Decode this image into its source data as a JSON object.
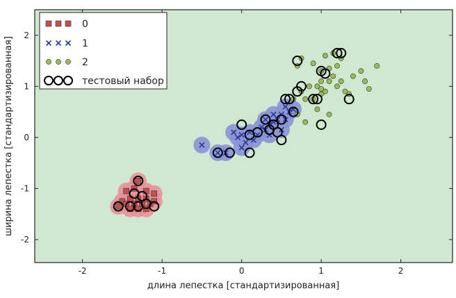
{
  "chart_data": {
    "type": "scatter",
    "xlabel": "длина лепестка [стандартизированная]",
    "ylabel": "ширина лепестка [стандартизированная]",
    "xlim": [
      -2.6,
      2.65
    ],
    "ylim": [
      -2.45,
      2.5
    ],
    "xticks": [
      "-2",
      "-1",
      "0",
      "1",
      "2"
    ],
    "xtick_values": [
      -2,
      -1,
      0,
      1,
      2
    ],
    "yticks": [
      "-2",
      "-1",
      "0",
      "1",
      "2"
    ],
    "ytick_values": [
      -2,
      -1,
      0,
      1,
      2
    ],
    "grid": false,
    "legend_position": "top-left",
    "background_region_color": "#cfe8cf",
    "region_colors": {
      "0": "#e8929a",
      "1": "#8a93d6",
      "2": "#cfe8cf"
    },
    "series": [
      {
        "name": "0",
        "marker": "square",
        "color": "#c0504d",
        "points": [
          [
            -1.45,
            -1.05
          ],
          [
            -1.35,
            -1.0
          ],
          [
            -1.2,
            -1.05
          ],
          [
            -1.1,
            -1.1
          ],
          [
            -1.3,
            -1.2
          ],
          [
            -1.2,
            -1.2
          ],
          [
            -1.4,
            -1.2
          ],
          [
            -1.5,
            -1.25
          ],
          [
            -1.35,
            -1.3
          ],
          [
            -1.25,
            -1.3
          ],
          [
            -1.15,
            -1.3
          ],
          [
            -1.45,
            -1.3
          ],
          [
            -1.3,
            -1.4
          ],
          [
            -1.2,
            -1.4
          ],
          [
            -1.4,
            -1.4
          ],
          [
            -1.55,
            -1.35
          ],
          [
            -1.3,
            -0.85
          ],
          [
            -1.1,
            -1.25
          ]
        ]
      },
      {
        "name": "1",
        "marker": "x",
        "color": "#2b3a8f",
        "points": [
          [
            -0.5,
            -0.15
          ],
          [
            -0.3,
            -0.3
          ],
          [
            -0.2,
            -0.3
          ],
          [
            -0.1,
            0.1
          ],
          [
            0.0,
            0.05
          ],
          [
            0.05,
            -0.1
          ],
          [
            0.1,
            0.1
          ],
          [
            0.2,
            0.05
          ],
          [
            0.25,
            0.2
          ],
          [
            0.3,
            0.15
          ],
          [
            0.35,
            0.25
          ],
          [
            0.4,
            0.3
          ],
          [
            0.45,
            0.35
          ],
          [
            0.4,
            0.45
          ],
          [
            0.5,
            0.45
          ],
          [
            0.55,
            0.35
          ],
          [
            0.6,
            0.5
          ],
          [
            0.5,
            0.15
          ],
          [
            0.15,
            -0.05
          ],
          [
            0.3,
            0.35
          ],
          [
            0.55,
            0.6
          ],
          [
            0.65,
            0.55
          ],
          [
            0.0,
            -0.2
          ],
          [
            -0.05,
            0.0
          ],
          [
            0.35,
            0.05
          ]
        ]
      },
      {
        "name": "2",
        "marker": "circle",
        "color": "#9bbb59",
        "points": [
          [
            0.65,
            0.75
          ],
          [
            0.75,
            0.9
          ],
          [
            0.8,
            0.75
          ],
          [
            0.85,
            1.0
          ],
          [
            0.9,
            0.75
          ],
          [
            0.95,
            1.0
          ],
          [
            1.0,
            0.85
          ],
          [
            1.05,
            0.9
          ],
          [
            1.1,
            1.1
          ],
          [
            1.15,
            1.2
          ],
          [
            1.2,
            1.0
          ],
          [
            1.25,
            1.1
          ],
          [
            1.3,
            0.9
          ],
          [
            1.35,
            0.85
          ],
          [
            1.4,
            1.2
          ],
          [
            1.5,
            1.3
          ],
          [
            1.55,
            1.1
          ],
          [
            1.6,
            0.95
          ],
          [
            1.7,
            1.4
          ],
          [
            0.7,
            1.4
          ],
          [
            0.75,
            1.55
          ],
          [
            0.9,
            1.45
          ],
          [
            1.0,
            1.3
          ],
          [
            1.05,
            1.6
          ],
          [
            1.15,
            1.65
          ],
          [
            1.2,
            1.4
          ],
          [
            1.25,
            1.55
          ],
          [
            0.7,
            0.45
          ],
          [
            0.8,
            0.3
          ],
          [
            1.1,
            0.45
          ],
          [
            1.0,
            0.95
          ],
          [
            0.95,
            0.55
          ],
          [
            1.0,
            1.1
          ],
          [
            1.1,
            1.35
          ]
        ]
      },
      {
        "name": "тестовый набор",
        "marker": "open-circle",
        "color": "#000000",
        "points": [
          [
            -1.55,
            -1.35
          ],
          [
            -1.35,
            -1.1
          ],
          [
            -1.3,
            -0.85
          ],
          [
            -1.2,
            -1.3
          ],
          [
            -1.1,
            -1.35
          ],
          [
            -1.4,
            -1.35
          ],
          [
            -1.25,
            -1.15
          ],
          [
            -1.3,
            -1.35
          ],
          [
            -0.3,
            -0.3
          ],
          [
            -0.15,
            -0.3
          ],
          [
            0.0,
            0.25
          ],
          [
            0.1,
            0.05
          ],
          [
            0.1,
            -0.3
          ],
          [
            0.2,
            0.1
          ],
          [
            0.3,
            0.35
          ],
          [
            0.35,
            0.15
          ],
          [
            0.4,
            0.25
          ],
          [
            0.5,
            0.35
          ],
          [
            0.45,
            0.1
          ],
          [
            0.5,
            -0.05
          ],
          [
            0.55,
            0.75
          ],
          [
            0.6,
            0.75
          ],
          [
            0.65,
            0.5
          ],
          [
            0.7,
            0.9
          ],
          [
            0.75,
            1.0
          ],
          [
            0.9,
            0.75
          ],
          [
            0.95,
            0.75
          ],
          [
            1.0,
            1.3
          ],
          [
            1.05,
            1.25
          ],
          [
            1.2,
            1.65
          ],
          [
            1.25,
            1.65
          ],
          [
            1.35,
            0.75
          ],
          [
            1.0,
            0.25
          ],
          [
            0.7,
            1.5
          ]
        ]
      }
    ]
  },
  "legend": {
    "items": [
      {
        "label": "0"
      },
      {
        "label": "1"
      },
      {
        "label": "2"
      },
      {
        "label": "тестовый набор"
      }
    ]
  }
}
